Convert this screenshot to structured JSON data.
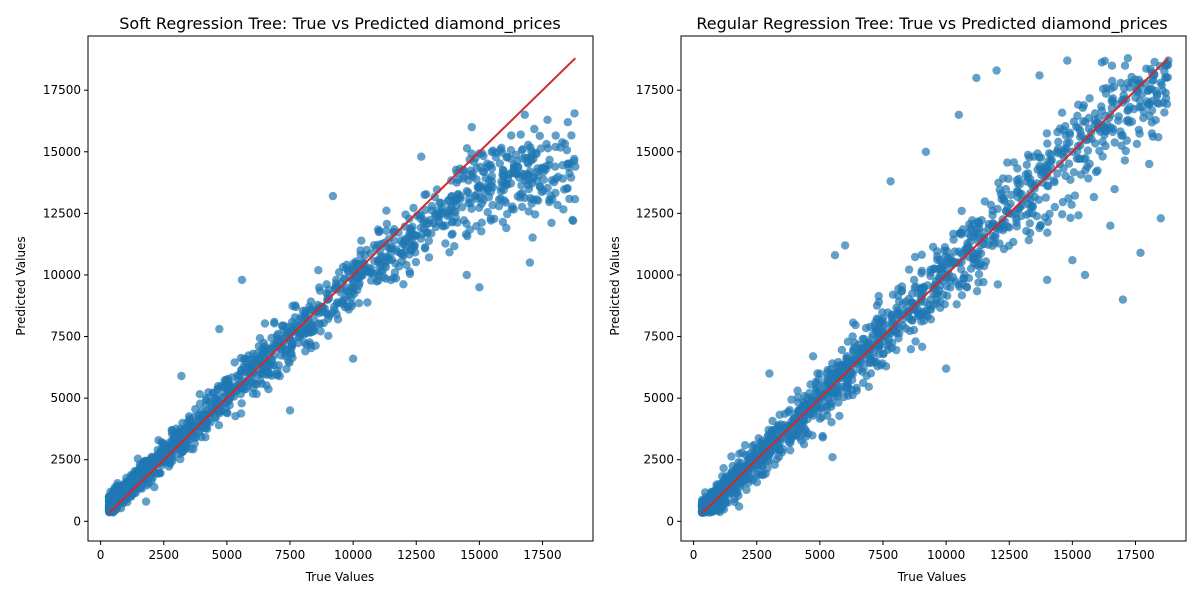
{
  "chart_data": [
    {
      "type": "scatter",
      "title": "Soft Regression Tree: True vs Predicted diamond_prices",
      "xlabel": "True Values",
      "ylabel": "Predicted Values",
      "xlim": [
        -500,
        19500
      ],
      "ylim": [
        -800,
        19700
      ],
      "xticks": [
        0,
        2500,
        5000,
        7500,
        10000,
        12500,
        15000,
        17500
      ],
      "yticks": [
        0,
        2500,
        5000,
        7500,
        10000,
        12500,
        15000,
        17500
      ],
      "grid": false,
      "point_color": "#1f77b4",
      "reference_line": {
        "x": [
          330,
          18800
        ],
        "y": [
          330,
          18800
        ],
        "color": "#d62728"
      },
      "trend": {
        "type": "piecewise_linear",
        "knots_x": [
          330,
          5000,
          10000,
          15000,
          18800
        ],
        "knots_y": [
          600,
          5100,
          9800,
          13600,
          14400
        ],
        "spread": 900
      },
      "points": [
        [
          430,
          700
        ],
        [
          600,
          1300
        ],
        [
          800,
          1000
        ],
        [
          1000,
          1600
        ],
        [
          1500,
          1800
        ],
        [
          2000,
          2200
        ],
        [
          2600,
          2800
        ],
        [
          3000,
          3400
        ],
        [
          3500,
          3700
        ],
        [
          4000,
          4200
        ],
        [
          4500,
          4600
        ],
        [
          5000,
          5100
        ],
        [
          5500,
          5900
        ],
        [
          6000,
          6300
        ],
        [
          6500,
          6800
        ],
        [
          7000,
          7300
        ],
        [
          7500,
          7600
        ],
        [
          8000,
          8100
        ],
        [
          8500,
          8500
        ],
        [
          9000,
          9000
        ],
        [
          9500,
          9300
        ],
        [
          10000,
          9800
        ],
        [
          10500,
          10200
        ],
        [
          11000,
          10600
        ],
        [
          11500,
          10900
        ],
        [
          12000,
          11300
        ],
        [
          12500,
          11600
        ],
        [
          13000,
          12100
        ],
        [
          13500,
          12600
        ],
        [
          14000,
          13000
        ],
        [
          14500,
          13400
        ],
        [
          15000,
          13600
        ],
        [
          15500,
          13800
        ],
        [
          16000,
          14000
        ],
        [
          16500,
          14100
        ],
        [
          17000,
          14200
        ],
        [
          17500,
          14300
        ],
        [
          18000,
          14400
        ],
        [
          18500,
          14500
        ],
        [
          18800,
          14400
        ],
        [
          4700,
          7800
        ],
        [
          5600,
          9800
        ],
        [
          3200,
          5900
        ],
        [
          12700,
          14800
        ],
        [
          9200,
          13200
        ],
        [
          14700,
          16000
        ],
        [
          16800,
          16500
        ],
        [
          17700,
          16300
        ],
        [
          18500,
          16200
        ],
        [
          1800,
          800
        ],
        [
          7500,
          4500
        ],
        [
          10000,
          6600
        ],
        [
          15000,
          9500
        ],
        [
          17000,
          10500
        ],
        [
          14500,
          10000
        ]
      ]
    },
    {
      "type": "scatter",
      "title": "Regular Regression Tree: True vs Predicted diamond_prices",
      "xlabel": "True Values",
      "ylabel": "Predicted Values",
      "xlim": [
        -500,
        19500
      ],
      "ylim": [
        -800,
        19700
      ],
      "xticks": [
        0,
        2500,
        5000,
        7500,
        10000,
        12500,
        15000,
        17500
      ],
      "yticks": [
        0,
        2500,
        5000,
        7500,
        10000,
        12500,
        15000,
        17500
      ],
      "grid": false,
      "point_color": "#1f77b4",
      "reference_line": {
        "x": [
          330,
          18800
        ],
        "y": [
          330,
          18800
        ],
        "color": "#d62728"
      },
      "trend": {
        "type": "piecewise_linear",
        "knots_x": [
          330,
          5000,
          10000,
          15000,
          18800
        ],
        "knots_y": [
          330,
          5000,
          10000,
          15000,
          18000
        ],
        "spread": 1100
      },
      "points": [
        [
          330,
          350
        ],
        [
          600,
          500
        ],
        [
          1000,
          900
        ],
        [
          1500,
          1400
        ],
        [
          2000,
          2000
        ],
        [
          2500,
          2500
        ],
        [
          3000,
          3000
        ],
        [
          3500,
          3400
        ],
        [
          4000,
          4000
        ],
        [
          4500,
          4500
        ],
        [
          5000,
          5000
        ],
        [
          5500,
          5500
        ],
        [
          6000,
          6000
        ],
        [
          6500,
          6400
        ],
        [
          7000,
          7000
        ],
        [
          7500,
          7500
        ],
        [
          8000,
          8000
        ],
        [
          8500,
          8500
        ],
        [
          9000,
          9000
        ],
        [
          9500,
          9500
        ],
        [
          10000,
          10000
        ],
        [
          10500,
          10500
        ],
        [
          11000,
          11000
        ],
        [
          11500,
          11500
        ],
        [
          12000,
          12000
        ],
        [
          12500,
          12500
        ],
        [
          13000,
          13000
        ],
        [
          13500,
          13500
        ],
        [
          14000,
          14000
        ],
        [
          14500,
          14500
        ],
        [
          15000,
          15000
        ],
        [
          15500,
          15500
        ],
        [
          16000,
          16000
        ],
        [
          16500,
          16500
        ],
        [
          17000,
          17000
        ],
        [
          17500,
          17200
        ],
        [
          18000,
          17500
        ],
        [
          18500,
          17800
        ],
        [
          18800,
          18700
        ],
        [
          9200,
          15000
        ],
        [
          7800,
          13800
        ],
        [
          10500,
          16500
        ],
        [
          11200,
          18000
        ],
        [
          12000,
          18300
        ],
        [
          13700,
          18100
        ],
        [
          14800,
          18700
        ],
        [
          17200,
          18800
        ],
        [
          3000,
          6000
        ],
        [
          5600,
          10800
        ],
        [
          6000,
          11200
        ],
        [
          1800,
          600
        ],
        [
          5500,
          2600
        ],
        [
          10000,
          6200
        ],
        [
          14000,
          9800
        ],
        [
          15500,
          10000
        ],
        [
          17000,
          9000
        ],
        [
          17700,
          10900
        ],
        [
          16500,
          12000
        ],
        [
          18500,
          12300
        ],
        [
          15000,
          10600
        ]
      ]
    }
  ]
}
